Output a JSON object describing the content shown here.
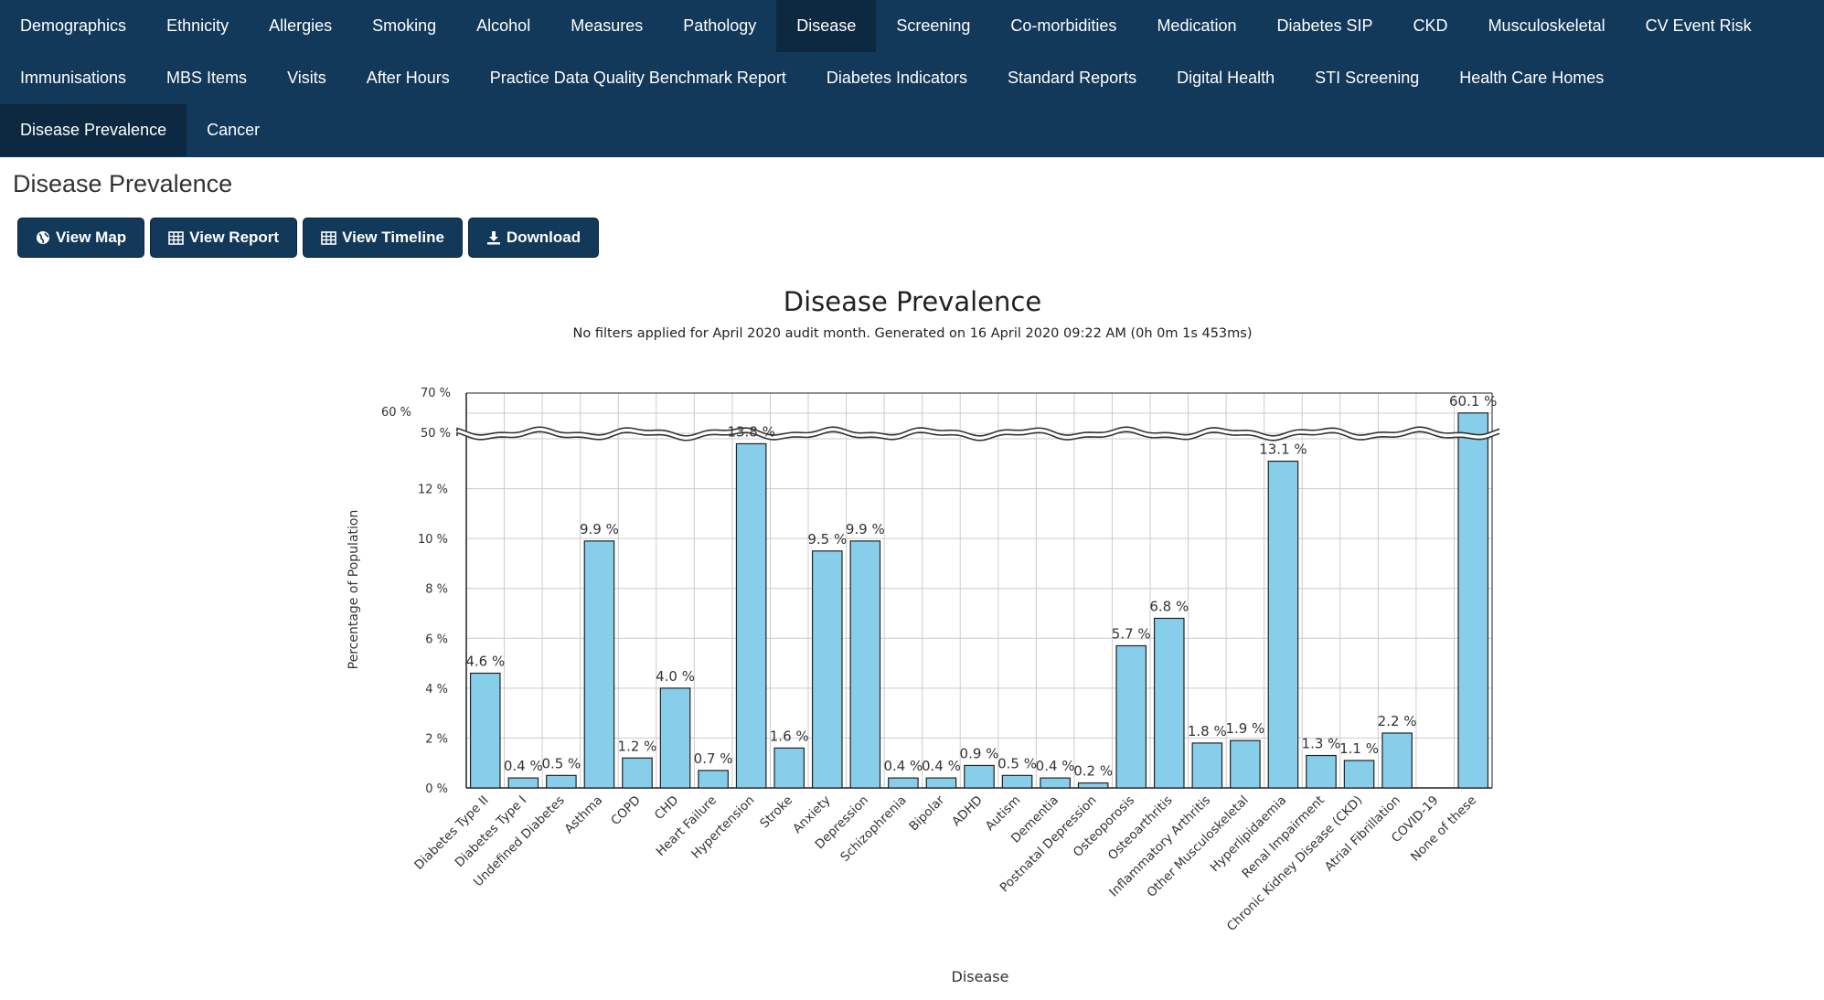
{
  "nav": {
    "rows": [
      [
        "Demographics",
        "Ethnicity",
        "Allergies",
        "Smoking",
        "Alcohol",
        "Measures",
        "Pathology",
        "Disease",
        "Screening",
        "Co-morbidities",
        "Medication",
        "Diabetes SIP",
        "CKD",
        "Musculoskeletal",
        "CV Event Risk"
      ],
      [
        "Immunisations",
        "MBS Items",
        "Visits",
        "After Hours",
        "Practice Data Quality Benchmark Report",
        "Diabetes Indicators",
        "Standard Reports",
        "Digital Health",
        "STI Screening",
        "Health Care Homes"
      ],
      [
        "Disease Prevalence",
        "Cancer"
      ]
    ]
  },
  "page": {
    "title": "Disease Prevalence"
  },
  "buttons": {
    "view_map": "View Map",
    "view_report": "View Report",
    "view_timeline": "View Timeline",
    "download": "Download"
  },
  "colors": {
    "nav_bg": "#12385a",
    "nav_active": "#0d2941",
    "bar": "#87ceeb",
    "bar_border": "#222222"
  },
  "chart_data": {
    "type": "bar",
    "title": "Disease Prevalence",
    "subtitle": "No filters applied for April 2020 audit month. Generated on 16 April 2020 09:22 AM (0h 0m 1s 453ms)",
    "xlabel": "Disease",
    "ylabel": "Percentage of Population",
    "y_ticks_lower": [
      "0 %",
      "2 %",
      "4 %",
      "6 %",
      "8 %",
      "10 %",
      "12 %"
    ],
    "y_ticks_upper": [
      "50 %",
      "60 %",
      "70 %"
    ],
    "y_axis_break": [
      14,
      50
    ],
    "ylim": [
      0,
      70
    ],
    "grid": true,
    "categories": [
      "Diabetes Type II",
      "Diabetes Type I",
      "Undefined Diabetes",
      "Asthma",
      "COPD",
      "CHD",
      "Heart Failure",
      "Hypertension",
      "Stroke",
      "Anxiety",
      "Depression",
      "Schizophrenia",
      "Bipolar",
      "ADHD",
      "Autism",
      "Dementia",
      "Postnatal Depression",
      "Osteoporosis",
      "Osteoarthritis",
      "Inflammatory Arthritis",
      "Other Musculoskeletal",
      "Hyperlipidaemia",
      "Renal Impairment",
      "Chronic Kidney Disease (CKD)",
      "Atrial Fibrillation",
      "COVID-19",
      "None of these"
    ],
    "values": [
      4.6,
      0.4,
      0.5,
      9.9,
      1.2,
      4.0,
      0.7,
      13.8,
      1.6,
      9.5,
      9.9,
      0.4,
      0.4,
      0.9,
      0.5,
      0.4,
      0.2,
      5.7,
      6.8,
      1.8,
      1.9,
      13.1,
      1.3,
      1.1,
      2.2,
      0,
      60.1
    ],
    "labels": [
      "4.6 %",
      "0.4 %",
      "0.5 %",
      "9.9 %",
      "1.2 %",
      "4.0 %",
      "0.7 %",
      "13.8 %",
      "1.6 %",
      "9.5 %",
      "9.9 %",
      "0.4 %",
      "0.4 %",
      "0.9 %",
      "0.5 %",
      "0.4 %",
      "0.2 %",
      "5.7 %",
      "6.8 %",
      "1.8 %",
      "1.9 %",
      "13.1 %",
      "1.3 %",
      "1.1 %",
      "2.2 %",
      "",
      "60.1 %"
    ]
  }
}
